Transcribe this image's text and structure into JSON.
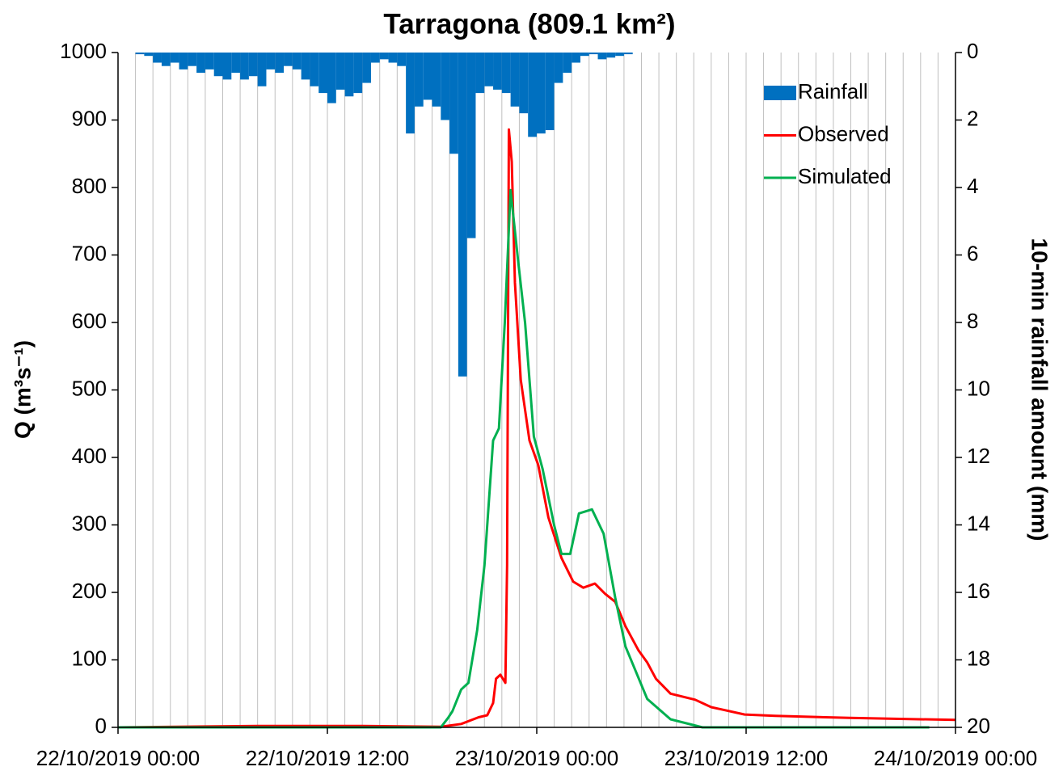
{
  "chart_data": {
    "type": "combo",
    "title": "Tarragona (809.1 km²)",
    "y_label": "Q (m³s⁻¹)",
    "y2_label": "10-min rainfall amount (mm)",
    "xlim": [
      "2019-10-22T00:00",
      "2019-10-24T00:00"
    ],
    "xticks": [
      {
        "value": "2019-10-22T00:00",
        "label": "22/10/2019 00:00"
      },
      {
        "value": "2019-10-22T12:00",
        "label": "22/10/2019 12:00"
      },
      {
        "value": "2019-10-23T00:00",
        "label": "23/10/2019 00:00"
      },
      {
        "value": "2019-10-23T12:00",
        "label": "23/10/2019 12:00"
      },
      {
        "value": "2019-10-24T00:00",
        "label": "24/10/2019 00:00"
      }
    ],
    "x_grid_step_hours": 1,
    "ylim": [
      0,
      1000
    ],
    "yticks": [
      0,
      100,
      200,
      300,
      400,
      500,
      600,
      700,
      800,
      900,
      1000
    ],
    "y2lim": [
      0,
      20
    ],
    "y2ticks": [
      0,
      2,
      4,
      6,
      8,
      10,
      12,
      14,
      16,
      18,
      20
    ],
    "y2_inverted": true,
    "grid": true,
    "legend": "upper right",
    "series": [
      {
        "name": "Rainfall",
        "type": "bar",
        "axis": "y2",
        "color": "#0070c0",
        "x": [
          "2019-10-22T01:00",
          "2019-10-22T01:30",
          "2019-10-22T02:00",
          "2019-10-22T02:30",
          "2019-10-22T03:00",
          "2019-10-22T03:30",
          "2019-10-22T04:00",
          "2019-10-22T04:30",
          "2019-10-22T05:00",
          "2019-10-22T05:30",
          "2019-10-22T06:00",
          "2019-10-22T06:30",
          "2019-10-22T07:00",
          "2019-10-22T07:30",
          "2019-10-22T08:00",
          "2019-10-22T08:30",
          "2019-10-22T09:00",
          "2019-10-22T09:30",
          "2019-10-22T10:00",
          "2019-10-22T10:30",
          "2019-10-22T11:00",
          "2019-10-22T11:30",
          "2019-10-22T12:00",
          "2019-10-22T12:30",
          "2019-10-22T13:00",
          "2019-10-22T13:30",
          "2019-10-22T14:00",
          "2019-10-22T14:30",
          "2019-10-22T15:00",
          "2019-10-22T15:30",
          "2019-10-22T16:00",
          "2019-10-22T16:30",
          "2019-10-22T17:00",
          "2019-10-22T17:30",
          "2019-10-22T18:00",
          "2019-10-22T18:30",
          "2019-10-22T19:00",
          "2019-10-22T19:30",
          "2019-10-22T20:00",
          "2019-10-22T20:30",
          "2019-10-22T21:00",
          "2019-10-22T21:30",
          "2019-10-22T22:00",
          "2019-10-22T22:30",
          "2019-10-22T23:00",
          "2019-10-22T23:30",
          "2019-10-23T00:00",
          "2019-10-23T00:30",
          "2019-10-23T01:00",
          "2019-10-23T01:30",
          "2019-10-23T02:00",
          "2019-10-23T02:30",
          "2019-10-23T03:00",
          "2019-10-23T03:30",
          "2019-10-23T04:00",
          "2019-10-23T04:30",
          "2019-10-23T05:00"
        ],
        "values": [
          0.05,
          0.1,
          0.3,
          0.4,
          0.3,
          0.5,
          0.4,
          0.6,
          0.5,
          0.7,
          0.8,
          0.6,
          0.8,
          0.7,
          1.0,
          0.5,
          0.6,
          0.4,
          0.5,
          0.8,
          1.0,
          1.2,
          1.5,
          1.1,
          1.3,
          1.2,
          0.9,
          0.3,
          0.2,
          0.3,
          0.4,
          2.4,
          1.6,
          1.4,
          1.6,
          2.0,
          3.0,
          9.6,
          5.5,
          1.2,
          1.0,
          1.1,
          1.2,
          1.6,
          1.8,
          2.5,
          2.4,
          2.3,
          0.9,
          0.6,
          0.3,
          0.1,
          0.05,
          0.2,
          0.15,
          0.1,
          0.05
        ]
      },
      {
        "name": "Observed",
        "type": "line",
        "axis": "y",
        "color": "#ff0000",
        "x": [
          "2019-10-22T00:00",
          "2019-10-22T08:00",
          "2019-10-22T14:00",
          "2019-10-22T18:30",
          "2019-10-22T19:40",
          "2019-10-22T20:40",
          "2019-10-22T21:10",
          "2019-10-22T21:30",
          "2019-10-22T21:40",
          "2019-10-22T21:55",
          "2019-10-22T22:12",
          "2019-10-22T22:18",
          "2019-10-22T22:24",
          "2019-10-22T22:34",
          "2019-10-22T22:45",
          "2019-10-22T23:05",
          "2019-10-22T23:35",
          "2019-10-23T00:05",
          "2019-10-23T00:40",
          "2019-10-23T01:25",
          "2019-10-23T02:05",
          "2019-10-23T02:40",
          "2019-10-23T03:20",
          "2019-10-23T03:55",
          "2019-10-23T04:30",
          "2019-10-23T05:05",
          "2019-10-23T05:50",
          "2019-10-23T06:20",
          "2019-10-23T06:50",
          "2019-10-23T07:40",
          "2019-10-23T09:05",
          "2019-10-23T10:00",
          "2019-10-23T11:55",
          "2019-10-23T13:40",
          "2019-10-23T17:55",
          "2019-10-24T00:00"
        ],
        "values": [
          0,
          2,
          2,
          1,
          5,
          15,
          18,
          36,
          72,
          78,
          66,
          240,
          886,
          838,
          659,
          515,
          425,
          389,
          311,
          251,
          216,
          207,
          213,
          198,
          186,
          150,
          114,
          96,
          72,
          50,
          41,
          30,
          19,
          17,
          14,
          11
        ]
      },
      {
        "name": "Simulated",
        "type": "line",
        "axis": "y",
        "color": "#00b050",
        "x": [
          "2019-10-22T00:00",
          "2019-10-22T18:30",
          "2019-10-22T18:55",
          "2019-10-22T19:10",
          "2019-10-22T19:40",
          "2019-10-22T20:05",
          "2019-10-22T20:35",
          "2019-10-22T21:00",
          "2019-10-22T21:30",
          "2019-10-22T21:50",
          "2019-10-22T22:10",
          "2019-10-22T22:30",
          "2019-10-22T22:55",
          "2019-10-22T23:20",
          "2019-10-22T23:50",
          "2019-10-23T00:20",
          "2019-10-23T01:00",
          "2019-10-23T01:25",
          "2019-10-23T01:55",
          "2019-10-23T02:25",
          "2019-10-23T03:10",
          "2019-10-23T03:50",
          "2019-10-23T04:30",
          "2019-10-23T05:05",
          "2019-10-23T06:20",
          "2019-10-23T07:40",
          "2019-10-23T09:30",
          "2019-10-23T22:30"
        ],
        "values": [
          0,
          0,
          14,
          24,
          56,
          66,
          144,
          240,
          425,
          443,
          599,
          796,
          695,
          599,
          431,
          383,
          299,
          257,
          257,
          317,
          323,
          287,
          192,
          120,
          42,
          12,
          0,
          0
        ]
      }
    ]
  }
}
